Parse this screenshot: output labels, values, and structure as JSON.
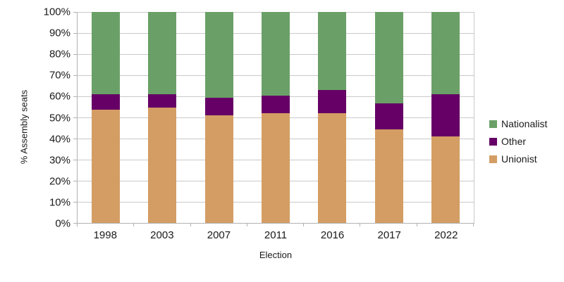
{
  "chart_data": {
    "type": "bar",
    "stacked": true,
    "xlabel": "Election",
    "ylabel": "% Assembly seats",
    "categories": [
      "1998",
      "2003",
      "2007",
      "2011",
      "2016",
      "2017",
      "2022"
    ],
    "series": [
      {
        "name": "Unionist",
        "color": "#d49d64",
        "values": [
          53.7,
          54.6,
          50.9,
          51.9,
          51.9,
          44.4,
          41.1
        ]
      },
      {
        "name": "Other",
        "color": "#660066",
        "values": [
          7.4,
          6.5,
          8.3,
          8.3,
          11.1,
          12.2,
          20.0
        ]
      },
      {
        "name": "Nationalist",
        "color": "#6aa067",
        "values": [
          38.9,
          38.9,
          40.8,
          39.8,
          37.0,
          43.4,
          38.9
        ]
      }
    ],
    "ylim": [
      0,
      100
    ],
    "ytick_step": 10,
    "ytick_suffix": "%",
    "grid": true,
    "legend_position": "right",
    "legend_order": [
      "Nationalist",
      "Other",
      "Unionist"
    ]
  }
}
